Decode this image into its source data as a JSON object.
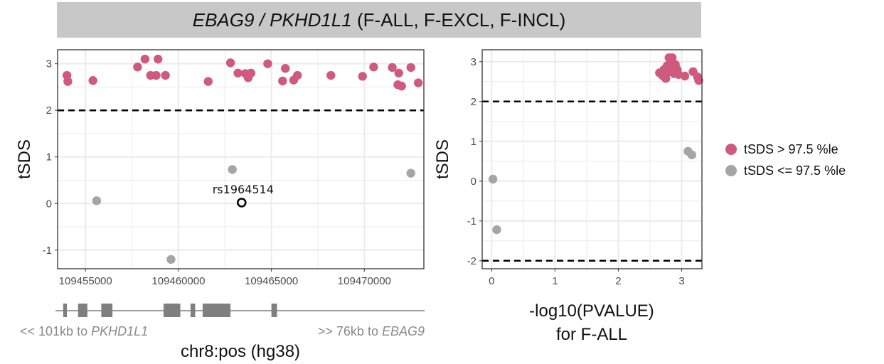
{
  "header": {
    "gene_a": "EBAG9",
    "separator": " / ",
    "gene_b": "PKHD1L1",
    "subtitle": " (F-ALL, F-EXCL, F-INCL)"
  },
  "colors": {
    "high": "#d05a7e",
    "low": "#a5a5a5",
    "header_bg": "#c8c8c8",
    "grid": "#ebebeb",
    "gene_block": "#7f7f7f"
  },
  "legend": [
    {
      "label": "tSDS > 97.5 %le",
      "color": "#d05a7e"
    },
    {
      "label": "tSDS <= 97.5 %le",
      "color": "#a5a5a5"
    }
  ],
  "genomic_track": {
    "left_label_prefix": "<< 101kb to ",
    "left_gene": "PKHD1L1",
    "right_label_prefix": ">> 76kb to ",
    "right_gene": "EBAG9",
    "exons": [
      [
        109453800,
        109454000
      ],
      [
        109454600,
        109455100
      ],
      [
        109455850,
        109456450
      ],
      [
        109459200,
        109460100
      ],
      [
        109460650,
        109460900
      ],
      [
        109461300,
        109462800
      ],
      [
        109465000,
        109465300
      ]
    ]
  },
  "chart_data": [
    {
      "type": "scatter",
      "xlabel": "chr8:pos (hg38)",
      "ylabel": "tSDS",
      "xlim": [
        109453500,
        109473200
      ],
      "ylim": [
        -1.4,
        3.3
      ],
      "xticks": [
        109455000,
        109460000,
        109465000,
        109470000
      ],
      "xtick_labels": [
        "109455000",
        "109460000",
        "109465000",
        "109470000"
      ],
      "yticks": [
        -1,
        0,
        1,
        2,
        3
      ],
      "ytick_labels": [
        "-1",
        "0",
        "1",
        "2",
        "3"
      ],
      "hlines": [
        2
      ],
      "grid": true,
      "annotation": {
        "label": "rs1964514",
        "x": 109463400,
        "y": 0.02
      },
      "series": [
        {
          "name": "tSDS > 97.5 %le",
          "color": "#d05a7e",
          "points": [
            [
              109454000,
              2.75
            ],
            [
              109454050,
              2.62
            ],
            [
              109455400,
              2.64
            ],
            [
              109457800,
              2.93
            ],
            [
              109458200,
              3.1
            ],
            [
              109458500,
              2.75
            ],
            [
              109458900,
              3.1
            ],
            [
              109458800,
              2.75
            ],
            [
              109459300,
              2.75
            ],
            [
              109461600,
              2.62
            ],
            [
              109462800,
              3.02
            ],
            [
              109463200,
              2.8
            ],
            [
              109463600,
              2.79
            ],
            [
              109463750,
              2.7
            ],
            [
              109463900,
              2.8
            ],
            [
              109464800,
              3.0
            ],
            [
              109465600,
              2.63
            ],
            [
              109465750,
              2.9
            ],
            [
              109466200,
              2.65
            ],
            [
              109466400,
              2.75
            ],
            [
              109468200,
              2.75
            ],
            [
              109469900,
              2.73
            ],
            [
              109470500,
              2.93
            ],
            [
              109471500,
              2.92
            ],
            [
              109471800,
              2.55
            ],
            [
              109471850,
              2.8
            ],
            [
              109472000,
              2.52
            ],
            [
              109472500,
              2.92
            ],
            [
              109472900,
              2.59
            ]
          ]
        },
        {
          "name": "tSDS <= 97.5 %le",
          "color": "#a5a5a5",
          "points": [
            [
              109455600,
              0.06
            ],
            [
              109459600,
              -1.2
            ],
            [
              109462900,
              0.73
            ],
            [
              109472500,
              0.65
            ]
          ]
        }
      ]
    },
    {
      "type": "scatter",
      "xlabel": "-log10(PVALUE)",
      "xlabel2": "for F-ALL",
      "ylabel": "tSDS",
      "xlim": [
        -0.15,
        3.32
      ],
      "ylim": [
        -2.2,
        3.3
      ],
      "xticks": [
        0,
        1,
        2,
        3
      ],
      "xtick_labels": [
        "0",
        "1",
        "2",
        "3"
      ],
      "yticks": [
        -2,
        -1,
        0,
        1,
        2,
        3
      ],
      "ytick_labels": [
        "-2",
        "-1",
        "0",
        "1",
        "2",
        "3"
      ],
      "hlines": [
        2,
        -2
      ],
      "grid": true,
      "series": [
        {
          "name": "tSDS > 97.5 %le",
          "color": "#d05a7e",
          "points": [
            [
              2.65,
              2.72
            ],
            [
              2.7,
              2.65
            ],
            [
              2.72,
              2.8
            ],
            [
              2.75,
              2.58
            ],
            [
              2.77,
              2.9
            ],
            [
              2.8,
              3.1
            ],
            [
              2.82,
              2.75
            ],
            [
              2.83,
              3.0
            ],
            [
              2.85,
              3.1
            ],
            [
              2.86,
              2.85
            ],
            [
              2.88,
              2.7
            ],
            [
              2.9,
              2.93
            ],
            [
              2.93,
              2.8
            ],
            [
              2.95,
              2.68
            ],
            [
              3.05,
              2.64
            ],
            [
              3.18,
              2.75
            ],
            [
              3.25,
              2.62
            ],
            [
              3.27,
              2.53
            ]
          ]
        },
        {
          "name": "tSDS <= 97.5 %le",
          "color": "#a5a5a5",
          "points": [
            [
              0.02,
              0.05
            ],
            [
              0.08,
              -1.22
            ],
            [
              3.1,
              0.75
            ],
            [
              3.16,
              0.66
            ]
          ]
        }
      ]
    }
  ]
}
